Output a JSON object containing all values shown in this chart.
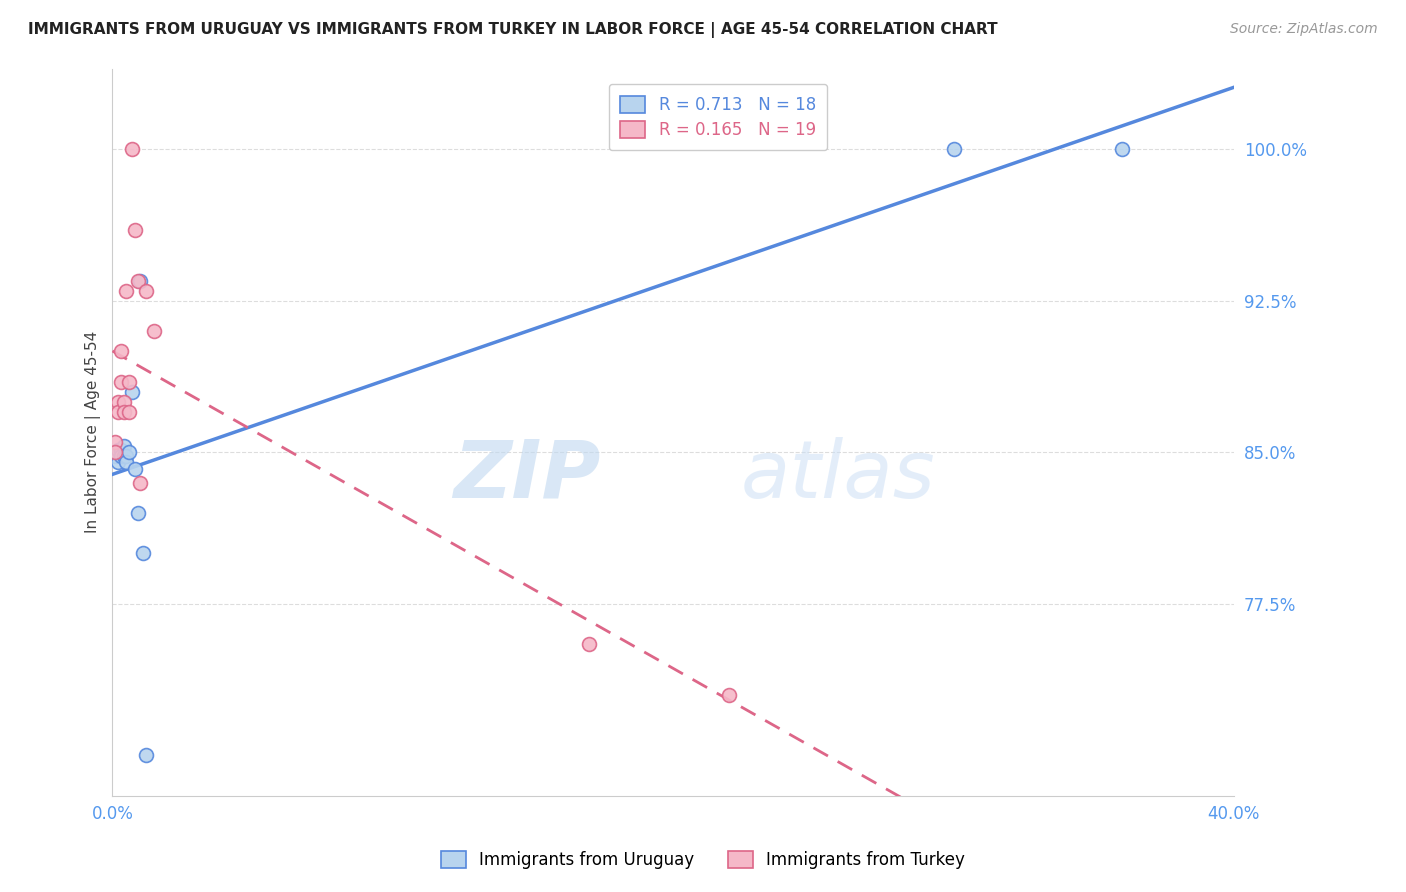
{
  "title": "IMMIGRANTS FROM URUGUAY VS IMMIGRANTS FROM TURKEY IN LABOR FORCE | AGE 45-54 CORRELATION CHART",
  "source": "Source: ZipAtlas.com",
  "ylabel": "In Labor Force | Age 45-54",
  "watermark_zip": "ZIP",
  "watermark_atlas": "atlas",
  "legend_label_1": "Immigrants from Uruguay",
  "legend_label_2": "Immigrants from Turkey",
  "R_uruguay": 0.713,
  "N_uruguay": 18,
  "R_turkey": 0.165,
  "N_turkey": 19,
  "color_uruguay": "#b8d4ee",
  "color_turkey": "#f5b8c8",
  "line_color_uruguay": "#5588dd",
  "line_color_turkey": "#dd6688",
  "xlim": [
    0.0,
    0.4
  ],
  "ylim": [
    0.68,
    1.04
  ],
  "yticks": [
    0.775,
    0.85,
    0.925,
    1.0
  ],
  "ytick_labels": [
    "77.5%",
    "85.0%",
    "92.5%",
    "100.0%"
  ],
  "xticks": [
    0.0,
    0.05,
    0.1,
    0.15,
    0.2,
    0.25,
    0.3,
    0.35,
    0.4
  ],
  "xtick_labels": [
    "0.0%",
    "",
    "",
    "",
    "",
    "",
    "",
    "",
    "40.0%"
  ],
  "uruguay_x": [
    0.001,
    0.002,
    0.002,
    0.003,
    0.003,
    0.004,
    0.004,
    0.005,
    0.005,
    0.006,
    0.007,
    0.008,
    0.009,
    0.01,
    0.011,
    0.012,
    0.3,
    0.36
  ],
  "uruguay_y": [
    0.848,
    0.851,
    0.845,
    0.851,
    0.848,
    0.853,
    0.848,
    0.848,
    0.845,
    0.85,
    0.88,
    0.842,
    0.82,
    0.935,
    0.8,
    0.7,
    1.0,
    1.0
  ],
  "turkey_x": [
    0.001,
    0.001,
    0.002,
    0.002,
    0.003,
    0.003,
    0.004,
    0.004,
    0.005,
    0.006,
    0.006,
    0.007,
    0.008,
    0.009,
    0.01,
    0.012,
    0.015,
    0.17,
    0.22
  ],
  "turkey_y": [
    0.855,
    0.85,
    0.875,
    0.87,
    0.9,
    0.885,
    0.875,
    0.87,
    0.93,
    0.885,
    0.87,
    1.0,
    0.96,
    0.935,
    0.835,
    0.93,
    0.91,
    0.755,
    0.73
  ],
  "background_color": "#ffffff",
  "grid_color": "#dddddd",
  "title_color": "#222222",
  "axis_color": "#5599ee",
  "marker_size": 100
}
